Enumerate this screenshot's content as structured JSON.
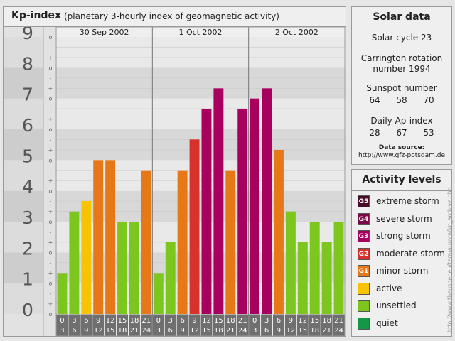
{
  "chart": {
    "title": "Kp-index",
    "subtitle": "(planetary 3-hourly index of geomagnetic activity)"
  },
  "chart_data": {
    "type": "bar",
    "title": "Kp-index",
    "subtitle": "(planetary 3-hourly index of geomagnetic activity)",
    "ylim": [
      0,
      9
    ],
    "y_ticks": [
      "0",
      "1",
      "2",
      "3",
      "4",
      "5",
      "6",
      "7",
      "8",
      "9"
    ],
    "minor_tick_marks": [
      "-",
      "+",
      "o"
    ],
    "days": [
      "30 Sep 2002",
      "1 Oct 2002",
      "2 Oct 2002"
    ],
    "intervals": [
      [
        "0",
        "3"
      ],
      [
        "3",
        "6"
      ],
      [
        "6",
        "9"
      ],
      [
        "9",
        "12"
      ],
      [
        "12",
        "15"
      ],
      [
        "15",
        "18"
      ],
      [
        "18",
        "21"
      ],
      [
        "21",
        "24"
      ]
    ],
    "values": [
      1.33,
      3.33,
      3.67,
      5,
      5,
      3,
      3,
      4.67,
      1.33,
      2.33,
      4.67,
      5.67,
      6.67,
      7.33,
      4.67,
      6.67,
      7,
      7.33,
      5.33,
      3.33,
      2.33,
      3,
      2.33,
      3
    ],
    "grid": true
  },
  "solar": {
    "title": "Solar data",
    "cycle": "Solar cycle 23",
    "carrington_line1": "Carrington rotation",
    "carrington_line2": "number 1994",
    "sunspot_label": "Sunspot number",
    "sunspot_values": [
      "64",
      "58",
      "70"
    ],
    "ap_label": "Daily Ap-index",
    "ap_values": [
      "28",
      "67",
      "53"
    ],
    "source_label": "Data source:",
    "source_url": "http://www.gfz-potsdam.de"
  },
  "activity": {
    "title": "Activity levels",
    "levels": [
      {
        "badge": "G5",
        "label": "extreme storm",
        "color": "#4a0a2a"
      },
      {
        "badge": "G4",
        "label": "severe storm",
        "color": "#7a0a47"
      },
      {
        "badge": "G3",
        "label": "strong storm",
        "color": "#a8005f"
      },
      {
        "badge": "G2",
        "label": "moderate storm",
        "color": "#d8322d"
      },
      {
        "badge": "G1",
        "label": "minor storm",
        "color": "#e67817"
      },
      {
        "badge": "",
        "label": "active",
        "color": "#f8c303"
      },
      {
        "badge": "",
        "label": "unsettled",
        "color": "#7cc61e"
      },
      {
        "badge": "",
        "label": "quiet",
        "color": "#149848"
      }
    ]
  },
  "watermark": "http://www.theusner.eu/tera/aurora/kp_archive.php"
}
